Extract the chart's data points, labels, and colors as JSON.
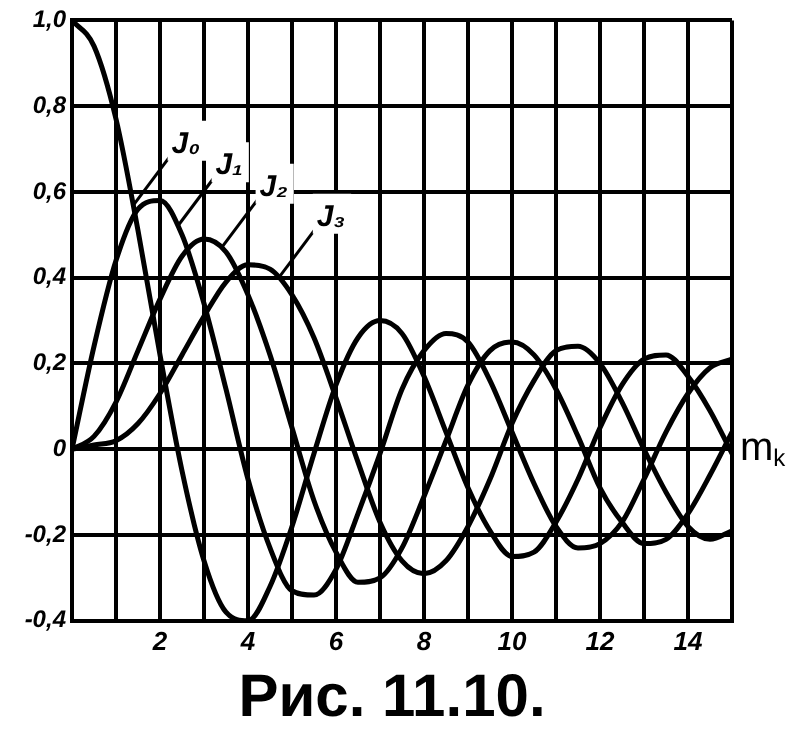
{
  "chart_data": {
    "type": "line",
    "xlabel": "m$_{k}$",
    "x": [
      0,
      0.5,
      1,
      1.5,
      2,
      2.5,
      3,
      3.5,
      4,
      4.5,
      5,
      5.5,
      6,
      6.5,
      7,
      7.5,
      8,
      8.5,
      9,
      9.5,
      10,
      10.5,
      11,
      11.5,
      12,
      12.5,
      13,
      13.5,
      14,
      14.5,
      15
    ],
    "series": [
      {
        "color": "#000000",
        "values": [
          1,
          0.94,
          0.77,
          0.51,
          0.22,
          -0.05,
          -0.26,
          -0.38,
          -0.4,
          -0.32,
          -0.18,
          -0.01,
          0.15,
          0.26,
          0.3,
          0.27,
          0.17,
          0.04,
          -0.09,
          -0.19,
          -0.25,
          -0.24,
          -0.17,
          -0.07,
          0.05,
          0.15,
          0.21,
          0.22,
          0.17,
          0.09,
          -0.01
        ]
      },
      {
        "color": "#000000",
        "values": [
          0,
          0.24,
          0.44,
          0.56,
          0.58,
          0.5,
          0.34,
          0.14,
          -0.07,
          -0.23,
          -0.33,
          -0.34,
          -0.28,
          -0.15,
          -0.01,
          0.14,
          0.23,
          0.27,
          0.25,
          0.16,
          0.04,
          -0.08,
          -0.18,
          -0.23,
          -0.22,
          -0.17,
          -0.07,
          0.04,
          0.13,
          0.19,
          0.21
        ]
      },
      {
        "color": "#000000",
        "values": [
          0,
          0.03,
          0.11,
          0.23,
          0.35,
          0.45,
          0.49,
          0.46,
          0.36,
          0.22,
          0.05,
          -0.12,
          -0.24,
          -0.31,
          -0.3,
          -0.23,
          -0.11,
          0.02,
          0.15,
          0.23,
          0.25,
          0.22,
          0.14,
          0.03,
          -0.09,
          -0.17,
          -0.22,
          -0.21,
          -0.15,
          -0.06,
          0.04
        ]
      },
      {
        "color": "#000000",
        "values": [
          0,
          0.01,
          0.02,
          0.06,
          0.13,
          0.22,
          0.31,
          0.39,
          0.43,
          0.42,
          0.36,
          0.26,
          0.12,
          -0.03,
          -0.17,
          -0.26,
          -0.29,
          -0.26,
          -0.18,
          -0.07,
          0.06,
          0.16,
          0.23,
          0.24,
          0.2,
          0.11,
          0,
          -0.1,
          -0.18,
          -0.21,
          -0.19
        ]
      }
    ],
    "xlim": [
      0,
      15
    ],
    "xticks": [
      {
        "value": 0,
        "label": null
      },
      {
        "value": 1,
        "label": null
      },
      2,
      {
        "value": 3,
        "label": null
      },
      4,
      {
        "value": 5,
        "label": null
      },
      6,
      {
        "value": 7,
        "label": null
      },
      8,
      {
        "value": 9,
        "label": null
      },
      10,
      {
        "value": 11,
        "label": null
      },
      12,
      {
        "value": 13,
        "label": null
      },
      14,
      {
        "value": 15,
        "label": null
      }
    ],
    "ylim": [
      -0.4,
      1
    ],
    "yticks": [
      {
        "value": -0.4,
        "label": "-0,4"
      },
      {
        "value": -0.2,
        "label": "-0,2"
      },
      0,
      {
        "value": 0.2,
        "label": "0,2"
      },
      {
        "value": 0.4,
        "label": "0,4"
      },
      {
        "value": 0.6,
        "label": "0,6"
      },
      {
        "value": 0.8,
        "label": "0,8"
      },
      {
        "value": 1,
        "label": "1,0"
      }
    ],
    "grid": true,
    "legend": false,
    "marker": "none",
    "line_style": "solid",
    "annotations": [
      {
        "text": "J₀",
        "x": 1.4,
        "y": 0.57
      },
      {
        "text": "J₁",
        "x": 2.4,
        "y": 0.52
      },
      {
        "text": "J₂",
        "x": 3.4,
        "y": 0.47
      },
      {
        "text": "J₃",
        "x": 4.7,
        "y": 0.4
      },
      "Рис. 11.10."
    ]
  }
}
